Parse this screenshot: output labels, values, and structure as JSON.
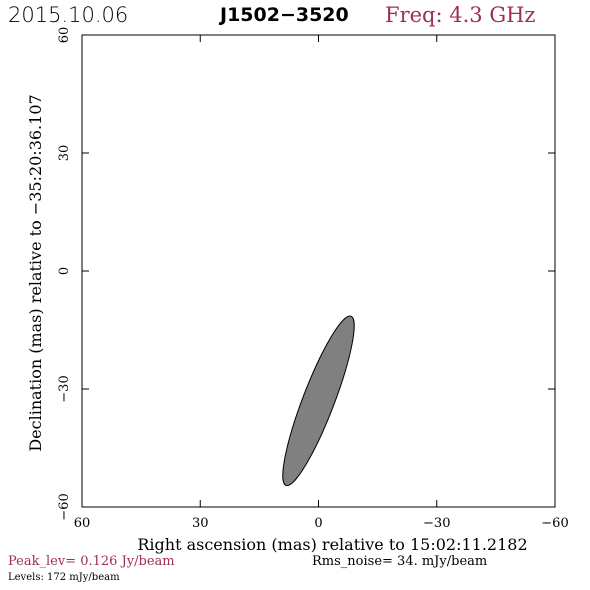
{
  "header": {
    "date": "2015.10.06",
    "source": "J1502−3520",
    "freq_label": "Freq:",
    "freq_value": "4.3 GHz",
    "freq_color": "#a0304c"
  },
  "footer": {
    "peak_label": "Peak_lev=",
    "peak_value": "0.126 Jy/beam",
    "rms_label": "Rms_noise=",
    "rms_value": "34. mJy/beam",
    "levels_label": "Levels:",
    "levels_value": "172 mJy/beam"
  },
  "chart_data": {
    "type": "contour",
    "xlabel": "Right ascension (mas) relative to 15:02:11.2182",
    "ylabel": "Declination (mas) relative to −35:20:36.107",
    "xlim": [
      60,
      -60
    ],
    "ylim": [
      -60,
      60
    ],
    "x_ticks": [
      60,
      30,
      0,
      -30,
      -60
    ],
    "x_tick_labels": [
      "60",
      "30",
      "0",
      "−30",
      "−60"
    ],
    "y_ticks": [
      -60,
      -30,
      0,
      30,
      60
    ],
    "y_tick_labels": [
      "−60",
      "−30",
      "0",
      "30",
      "60"
    ],
    "grid": false,
    "beam": {
      "center_x": 0,
      "center_y": -33,
      "major_axis": 46,
      "minor_axis": 8,
      "position_angle_deg": 21,
      "fill": "#808080"
    }
  }
}
